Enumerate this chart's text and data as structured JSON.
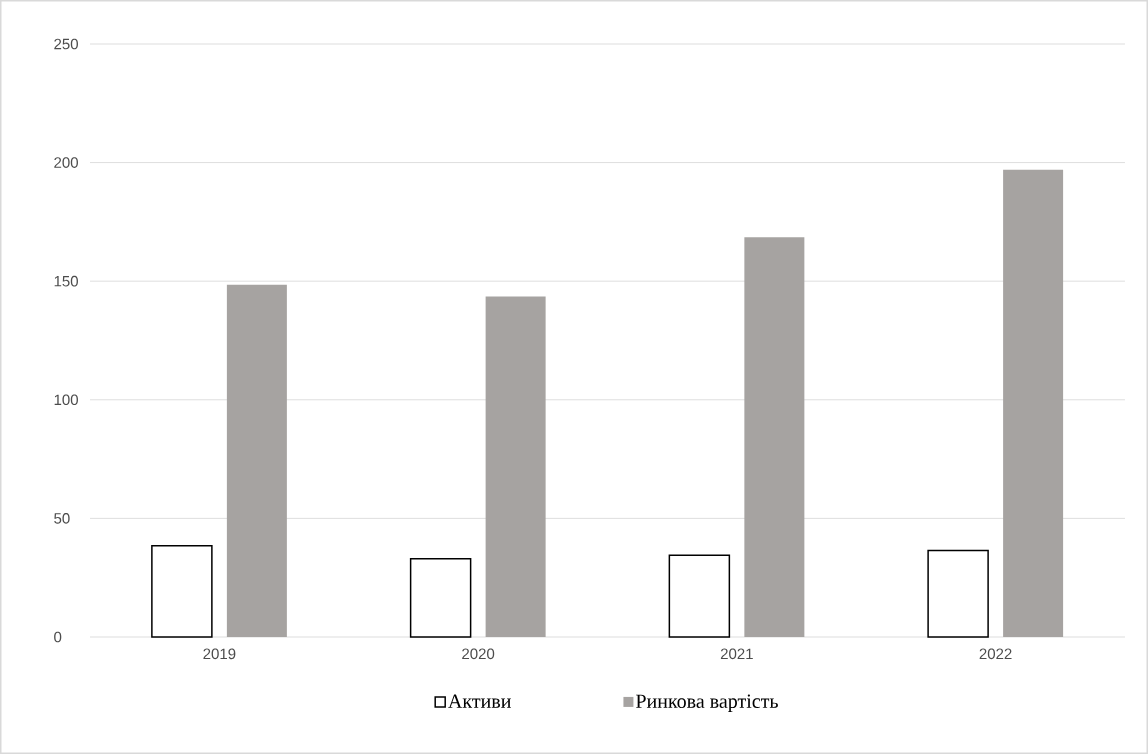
{
  "chart_data": {
    "type": "bar",
    "categories": [
      "2019",
      "2020",
      "2021",
      "2022"
    ],
    "series": [
      {
        "name": "Активи",
        "color": "#000000",
        "values": [
          38.5,
          33,
          34.5,
          36.5
        ]
      },
      {
        "name": "Ринкова вартість",
        "color": "#a6a3a1",
        "values": [
          148.5,
          143.5,
          168.5,
          197
        ]
      }
    ],
    "ylim": [
      0,
      250
    ],
    "yticks": [
      0,
      50,
      100,
      150,
      200,
      250
    ],
    "grid": "y",
    "legend": "bottom"
  }
}
